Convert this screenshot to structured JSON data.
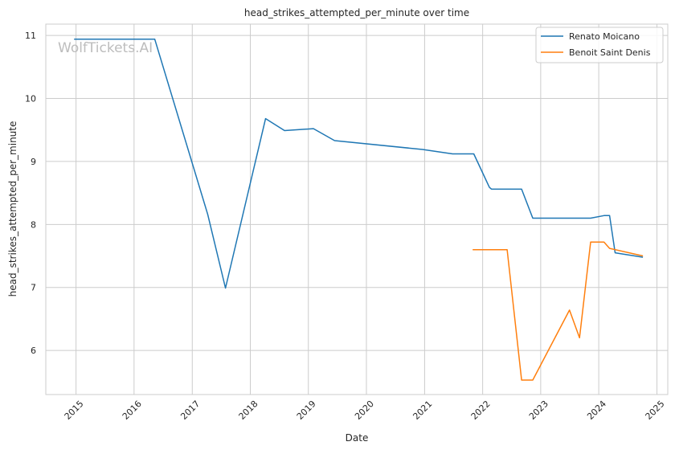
{
  "chart_data": {
    "type": "line",
    "title": "head_strikes_attempted_per_minute over time",
    "xlabel": "Date",
    "ylabel": "head_strikes_attempted_per_minute",
    "watermark": "WolfTickets.AI",
    "x_ticks": [
      "2015",
      "2016",
      "2017",
      "2018",
      "2019",
      "2020",
      "2021",
      "2022",
      "2023",
      "2024",
      "2025"
    ],
    "y_ticks": [
      "6",
      "7",
      "8",
      "9",
      "10",
      "11"
    ],
    "xlim": [
      "2014-06-25",
      "2025-03-10"
    ],
    "ylim": [
      5.3,
      11.18
    ],
    "grid": true,
    "legend_position": "top-right",
    "series": [
      {
        "name": "Renato Moicano",
        "color": "#1f77b4",
        "points": [
          [
            "2014-12-20",
            10.94
          ],
          [
            "2016-05-10",
            10.94
          ],
          [
            "2017-04-08",
            8.16
          ],
          [
            "2017-07-29",
            6.99
          ],
          [
            "2018-04-07",
            9.68
          ],
          [
            "2018-08-04",
            9.49
          ],
          [
            "2019-02-02",
            9.52
          ],
          [
            "2019-06-15",
            9.33
          ],
          [
            "2020-12-19",
            9.19
          ],
          [
            "2021-06-26",
            9.12
          ],
          [
            "2021-11-06",
            9.12
          ],
          [
            "2022-02-12",
            8.59
          ],
          [
            "2022-02-26",
            8.56
          ],
          [
            "2022-09-03",
            8.56
          ],
          [
            "2022-11-12",
            8.1
          ],
          [
            "2023-11-11",
            8.1
          ],
          [
            "2024-02-03",
            8.14
          ],
          [
            "2024-03-09",
            8.14
          ],
          [
            "2024-04-13",
            7.55
          ],
          [
            "2024-10-05",
            7.48
          ]
        ]
      },
      {
        "name": "Benoit Saint Denis",
        "color": "#ff7f0e",
        "points": [
          [
            "2021-10-30",
            7.6
          ],
          [
            "2022-06-04",
            7.6
          ],
          [
            "2022-09-03",
            5.53
          ],
          [
            "2022-11-12",
            5.53
          ],
          [
            "2023-07-01",
            6.64
          ],
          [
            "2023-09-02",
            6.2
          ],
          [
            "2023-11-11",
            7.72
          ],
          [
            "2024-02-03",
            7.72
          ],
          [
            "2024-03-09",
            7.62
          ],
          [
            "2024-10-05",
            7.5
          ]
        ]
      }
    ]
  }
}
